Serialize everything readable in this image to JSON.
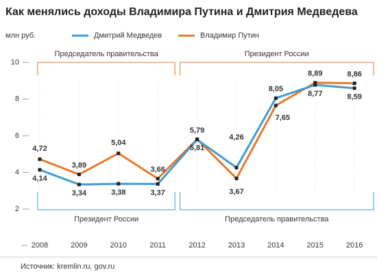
{
  "chart_data": {
    "type": "line",
    "title": "Как менялись доходы Владимира Путина и Дмитрия Медведева",
    "y_label": "млн руб.",
    "categories": [
      "2008",
      "2009",
      "2010",
      "2011",
      "2012",
      "2013",
      "2014",
      "2015",
      "2016"
    ],
    "series": [
      {
        "name": "Дмитрий Медведев",
        "color": "#3f9bd4",
        "values": [
          4.14,
          3.34,
          3.38,
          3.37,
          5.79,
          4.26,
          8.05,
          8.77,
          8.59
        ],
        "value_labels": [
          "4,14",
          "3,34",
          "3,38",
          "3,37",
          "5,79",
          "4,26",
          "8,05",
          "8,77",
          "8,59"
        ]
      },
      {
        "name": "Владимир Путин",
        "color": "#e8782a",
        "values": [
          4.72,
          3.89,
          5.04,
          3.66,
          5.81,
          3.67,
          7.65,
          8.89,
          8.86
        ],
        "value_labels": [
          "4,72",
          "3,89",
          "5,04",
          "3,66",
          "5,81",
          "3,67",
          "7,65",
          "8,89",
          "8,86"
        ]
      }
    ],
    "ylim": [
      2,
      10
    ],
    "yticks": [
      2,
      4,
      6,
      8,
      10
    ],
    "annotations": [
      {
        "text": "Председатель правительства",
        "color": "#e8782a"
      },
      {
        "text": "Президент России",
        "color": "#e8782a"
      },
      {
        "text": "Президент России",
        "color": "#3f9bd4"
      },
      {
        "text": "Председатель правительства",
        "color": "#3f9bd4"
      }
    ],
    "source": "Источник: kremlin.ru, gov.ru"
  }
}
